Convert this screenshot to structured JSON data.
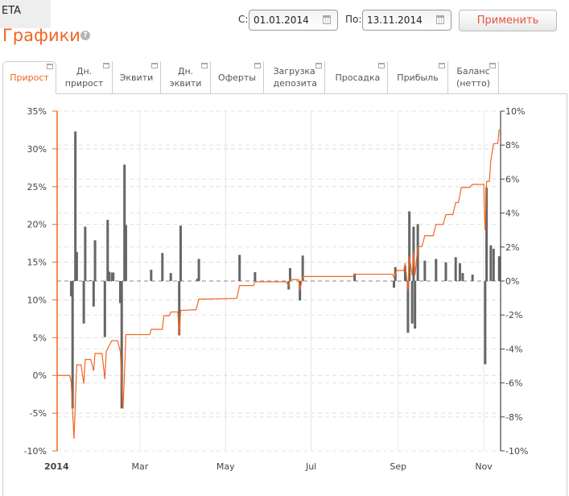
{
  "header": {
    "account": "ETA",
    "title": "Графики",
    "help_icon": "question-circle-icon"
  },
  "filter": {
    "from_label": "С:",
    "from_value": "01.01.2014",
    "to_label": "По:",
    "to_value": "13.11.2014",
    "apply_label": "Применить",
    "calendar_icon": "calendar-icon"
  },
  "tabs": [
    {
      "label": "Прирост",
      "active": true
    },
    {
      "label": "Дн. прирост"
    },
    {
      "label": "Эквити"
    },
    {
      "label": "Дн. эквити"
    },
    {
      "label": "Оферты"
    },
    {
      "label": "Загрузка депозита"
    },
    {
      "label": "Просадка"
    },
    {
      "label": "Прибыль"
    },
    {
      "label": "Баланс (нетто)"
    }
  ],
  "colors": {
    "accent": "#f26522",
    "line": "#f26522",
    "bars": "#666666",
    "button_text": "#e8523f"
  },
  "chart_data": {
    "type": "bar+line",
    "xlim": [
      "2014-01-01",
      "2014-11-13"
    ],
    "x_ticks": [
      {
        "date": "2014-01-01",
        "label": "2014",
        "bold": true
      },
      {
        "date": "2014-03-01",
        "label": "Mar"
      },
      {
        "date": "2014-05-01",
        "label": "May"
      },
      {
        "date": "2014-07-01",
        "label": "Jul"
      },
      {
        "date": "2014-09-01",
        "label": "Sep"
      },
      {
        "date": "2014-11-01",
        "label": "Nov"
      }
    ],
    "y_left": {
      "range": [
        -10,
        35
      ],
      "ticks": [
        "-10%",
        "-5%",
        "0%",
        "5%",
        "10%",
        "15%",
        "20%",
        "25%",
        "30%",
        "35%"
      ],
      "values": [
        -10,
        -5,
        0,
        5,
        10,
        15,
        20,
        25,
        30,
        35
      ]
    },
    "y_right": {
      "range": [
        -10,
        10
      ],
      "ticks": [
        "-10%",
        "-8%",
        "-6%",
        "-4%",
        "-2%",
        "0%",
        "2%",
        "4%",
        "6%",
        "8%",
        "10%"
      ],
      "values": [
        -10,
        -8,
        -6,
        -4,
        -2,
        0,
        2,
        4,
        6,
        8,
        10
      ]
    },
    "grid": true,
    "bars_axis": "right",
    "line_axis": "left",
    "bars": [
      [
        "2014-01-11",
        -0.9
      ],
      [
        "2014-01-12",
        -7.5
      ],
      [
        "2014-01-14",
        8.8
      ],
      [
        "2014-01-15",
        1.7
      ],
      [
        "2014-01-20",
        -2.5
      ],
      [
        "2014-01-21",
        3.2
      ],
      [
        "2014-01-25",
        0.05
      ],
      [
        "2014-01-27",
        -1.5
      ],
      [
        "2014-01-28",
        2.4
      ],
      [
        "2014-02-04",
        -3.3
      ],
      [
        "2014-02-06",
        3.6
      ],
      [
        "2014-02-07",
        0.55
      ],
      [
        "2014-02-09",
        0.5
      ],
      [
        "2014-02-10",
        0.5
      ],
      [
        "2014-02-15",
        -1.3
      ],
      [
        "2014-02-16",
        -7.5
      ],
      [
        "2014-02-18",
        6.85
      ],
      [
        "2014-02-19",
        3.3
      ],
      [
        "2014-03-09",
        0.66
      ],
      [
        "2014-03-17",
        1.65
      ],
      [
        "2014-03-23",
        0.47
      ],
      [
        "2014-03-29",
        -3.2
      ],
      [
        "2014-03-30",
        3.26
      ],
      [
        "2014-04-11",
        0.14
      ],
      [
        "2014-04-12",
        1.3
      ],
      [
        "2014-05-11",
        1.54
      ],
      [
        "2014-05-22",
        0.52
      ],
      [
        "2014-06-15",
        -0.5
      ],
      [
        "2014-06-16",
        0.76
      ],
      [
        "2014-06-23",
        -1.15
      ],
      [
        "2014-06-25",
        1.5
      ],
      [
        "2014-08-01",
        0.44
      ],
      [
        "2014-08-29",
        -0.4
      ],
      [
        "2014-08-30",
        0.82
      ],
      [
        "2014-09-06",
        0.87
      ],
      [
        "2014-09-08",
        -3.05
      ],
      [
        "2014-09-09",
        4.1
      ],
      [
        "2014-09-11",
        -2.5
      ],
      [
        "2014-09-12",
        3.2
      ],
      [
        "2014-09-13",
        -2.8
      ],
      [
        "2014-09-15",
        3.35
      ],
      [
        "2014-09-20",
        1.2
      ],
      [
        "2014-09-28",
        1.3
      ],
      [
        "2014-10-05",
        1.1
      ],
      [
        "2014-10-12",
        1.4
      ],
      [
        "2014-10-15",
        1.05
      ],
      [
        "2014-10-17",
        0.47
      ],
      [
        "2014-10-24",
        0.38
      ],
      [
        "2014-11-02",
        -4.9
      ],
      [
        "2014-11-03",
        5.5
      ],
      [
        "2014-11-06",
        2.1
      ],
      [
        "2014-11-08",
        1.9
      ],
      [
        "2014-11-12",
        1.46
      ]
    ],
    "line": [
      [
        "2014-01-01",
        0
      ],
      [
        "2014-01-10",
        0
      ],
      [
        "2014-01-11",
        -0.9
      ],
      [
        "2014-01-13",
        -8.4
      ],
      [
        "2014-01-15",
        1.4
      ],
      [
        "2014-01-18",
        1.4
      ],
      [
        "2014-01-20",
        -1.1
      ],
      [
        "2014-01-21",
        2.1
      ],
      [
        "2014-01-25",
        2.1
      ],
      [
        "2014-01-27",
        0.6
      ],
      [
        "2014-01-28",
        2.9
      ],
      [
        "2014-02-02",
        2.9
      ],
      [
        "2014-02-04",
        -0.5
      ],
      [
        "2014-02-05",
        3.2
      ],
      [
        "2014-02-09",
        4.6
      ],
      [
        "2014-02-13",
        4.6
      ],
      [
        "2014-02-15",
        3.2
      ],
      [
        "2014-02-17",
        -4.4
      ],
      [
        "2014-02-19",
        5.4
      ],
      [
        "2014-03-08",
        5.4
      ],
      [
        "2014-03-09",
        6.1
      ],
      [
        "2014-03-17",
        6.1
      ],
      [
        "2014-03-18",
        7.9
      ],
      [
        "2014-03-22",
        7.9
      ],
      [
        "2014-03-23",
        8.4
      ],
      [
        "2014-03-28",
        8.4
      ],
      [
        "2014-03-29",
        5.3
      ],
      [
        "2014-03-30",
        8.6
      ],
      [
        "2014-04-10",
        8.7
      ],
      [
        "2014-04-12",
        10.1
      ],
      [
        "2014-05-09",
        10.2
      ],
      [
        "2014-05-11",
        11.9
      ],
      [
        "2014-05-21",
        11.9
      ],
      [
        "2014-05-22",
        12.4
      ],
      [
        "2014-06-13",
        12.4
      ],
      [
        "2014-06-15",
        11.9
      ],
      [
        "2014-06-16",
        12.7
      ],
      [
        "2014-06-22",
        12.7
      ],
      [
        "2014-06-23",
        11.3
      ],
      [
        "2014-06-25",
        13.1
      ],
      [
        "2014-07-31",
        13.1
      ],
      [
        "2014-08-01",
        13.4
      ],
      [
        "2014-08-28",
        13.4
      ],
      [
        "2014-08-29",
        13.0
      ],
      [
        "2014-08-31",
        13.9
      ],
      [
        "2014-09-05",
        13.9
      ],
      [
        "2014-09-06",
        14.9
      ],
      [
        "2014-09-08",
        11.3
      ],
      [
        "2014-09-09",
        15.8
      ],
      [
        "2014-09-11",
        13.2
      ],
      [
        "2014-09-12",
        16.5
      ],
      [
        "2014-09-13",
        13.3
      ],
      [
        "2014-09-15",
        17.0
      ],
      [
        "2014-09-18",
        17.1
      ],
      [
        "2014-09-20",
        18.5
      ],
      [
        "2014-09-26",
        18.5
      ],
      [
        "2014-09-28",
        20.0
      ],
      [
        "2014-10-03",
        20.0
      ],
      [
        "2014-10-05",
        21.3
      ],
      [
        "2014-10-10",
        21.3
      ],
      [
        "2014-10-12",
        22.9
      ],
      [
        "2014-10-14",
        22.9
      ],
      [
        "2014-10-16",
        24.9
      ],
      [
        "2014-10-22",
        24.9
      ],
      [
        "2014-10-24",
        25.3
      ],
      [
        "2014-11-01",
        25.3
      ],
      [
        "2014-11-02",
        19.2
      ],
      [
        "2014-11-03",
        25.7
      ],
      [
        "2014-11-05",
        25.7
      ],
      [
        "2014-11-06",
        28.4
      ],
      [
        "2014-11-08",
        30.7
      ],
      [
        "2014-11-11",
        30.7
      ],
      [
        "2014-11-12",
        32.6
      ]
    ]
  }
}
